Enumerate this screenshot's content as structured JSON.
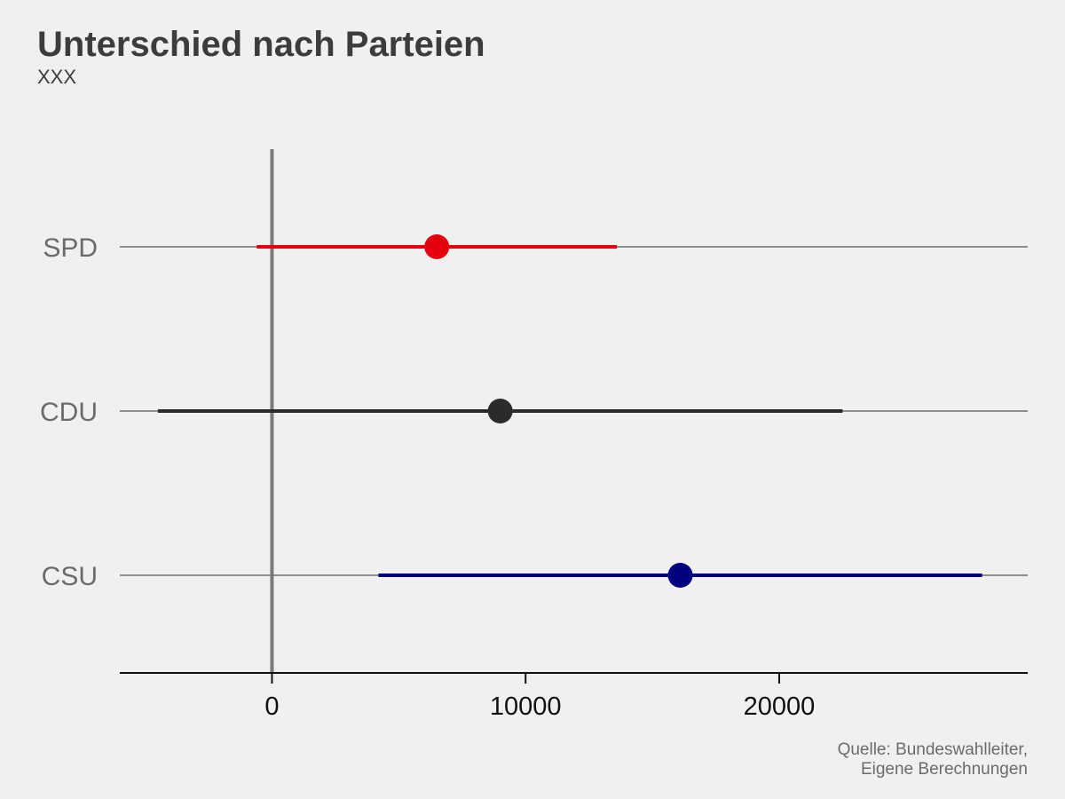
{
  "chart_data": {
    "type": "scatter",
    "title": "Unterschied nach Parteien",
    "subtitle": "XXX",
    "caption": [
      "Quelle: Bundeswahlleiter,",
      "Eigene Berechnungen"
    ],
    "xlabel": "",
    "ylabel": "",
    "xlim": [
      -6000,
      29800
    ],
    "x_ticks": [
      0,
      10000,
      20000
    ],
    "reference_line": 0,
    "grid": "horizontal",
    "series": [
      {
        "name": "SPD",
        "estimate": 6500,
        "ci_low": -600,
        "ci_high": 13600,
        "color": "#e3000f"
      },
      {
        "name": "CDU",
        "estimate": 9000,
        "ci_low": -4500,
        "ci_high": 22500,
        "color": "#2b2b2b"
      },
      {
        "name": "CSU",
        "estimate": 16100,
        "ci_low": 4200,
        "ci_high": 28000,
        "color": "#000080"
      }
    ]
  }
}
